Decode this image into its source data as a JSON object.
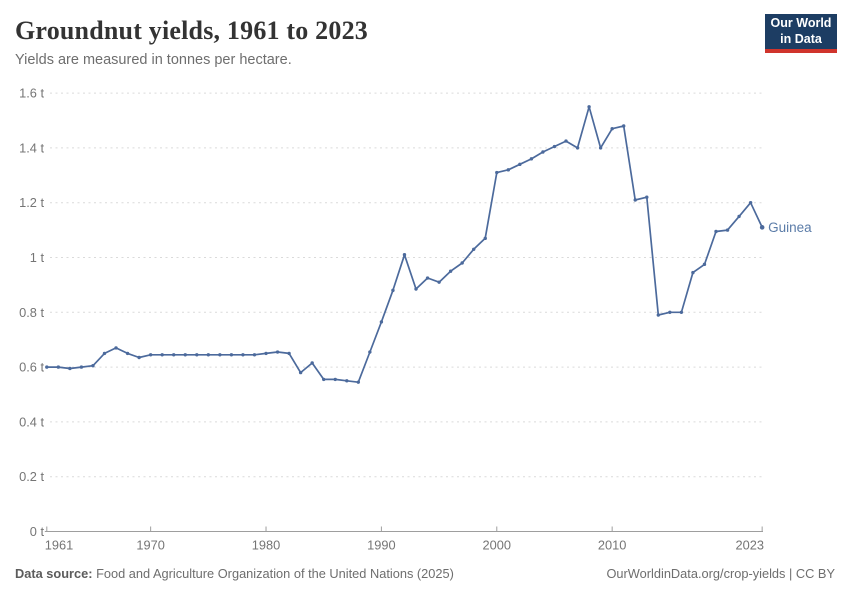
{
  "header": {
    "title": "Groundnut yields, 1961 to 2023",
    "subtitle": "Yields are measured in tonnes per hectare.",
    "logo": {
      "line1": "Our World",
      "line2": "in Data"
    }
  },
  "footer": {
    "source_label": "Data source:",
    "source_text": " Food and Agriculture Organization of the United Nations (2025)",
    "right_text": "OurWorldinData.org/crop-yields | CC BY"
  },
  "colors": {
    "line": "#4c6a9c",
    "entity_label": "#5b7ca8",
    "grid": "#dadada",
    "axis": "#9e9e9e",
    "tick_label": "#757575",
    "logo_bg": "#1d3d63",
    "logo_red": "#d0342c"
  },
  "chart_data": {
    "type": "line",
    "title": "Groundnut yields, 1961 to 2023",
    "subtitle": "Yields are measured in tonnes per hectare.",
    "unit": "t",
    "grid": true,
    "legend_position": "end-of-line",
    "ylim": [
      0,
      1.6
    ],
    "yticks": [
      0,
      0.2,
      0.4,
      0.6,
      0.8,
      1.0,
      1.2,
      1.4,
      1.6
    ],
    "xticks": [
      1961,
      1970,
      1980,
      1990,
      2000,
      2010,
      2023
    ],
    "x": [
      1961,
      1962,
      1963,
      1964,
      1965,
      1966,
      1967,
      1968,
      1969,
      1970,
      1971,
      1972,
      1973,
      1974,
      1975,
      1976,
      1977,
      1978,
      1979,
      1980,
      1981,
      1982,
      1983,
      1984,
      1985,
      1986,
      1987,
      1988,
      1989,
      1990,
      1991,
      1992,
      1993,
      1994,
      1995,
      1996,
      1997,
      1998,
      1999,
      2000,
      2001,
      2002,
      2003,
      2004,
      2005,
      2006,
      2007,
      2008,
      2009,
      2010,
      2011,
      2012,
      2013,
      2014,
      2015,
      2016,
      2017,
      2018,
      2019,
      2020,
      2021,
      2022,
      2023
    ],
    "series": [
      {
        "name": "Guinea",
        "values": [
          0.6,
          0.6,
          0.595,
          0.6,
          0.605,
          0.65,
          0.67,
          0.65,
          0.635,
          0.645,
          0.645,
          0.645,
          0.645,
          0.645,
          0.645,
          0.645,
          0.645,
          0.645,
          0.645,
          0.65,
          0.655,
          0.65,
          0.58,
          0.615,
          0.555,
          0.555,
          0.55,
          0.545,
          0.655,
          0.765,
          0.88,
          1.01,
          0.885,
          0.925,
          0.91,
          0.95,
          0.98,
          1.03,
          1.07,
          1.31,
          1.32,
          1.34,
          1.36,
          1.385,
          1.405,
          1.425,
          1.4,
          1.55,
          1.4,
          1.47,
          1.48,
          1.21,
          1.22,
          0.79,
          0.8,
          0.8,
          0.945,
          0.975,
          1.095,
          1.1,
          1.15,
          1.2,
          1.11
        ]
      }
    ]
  }
}
